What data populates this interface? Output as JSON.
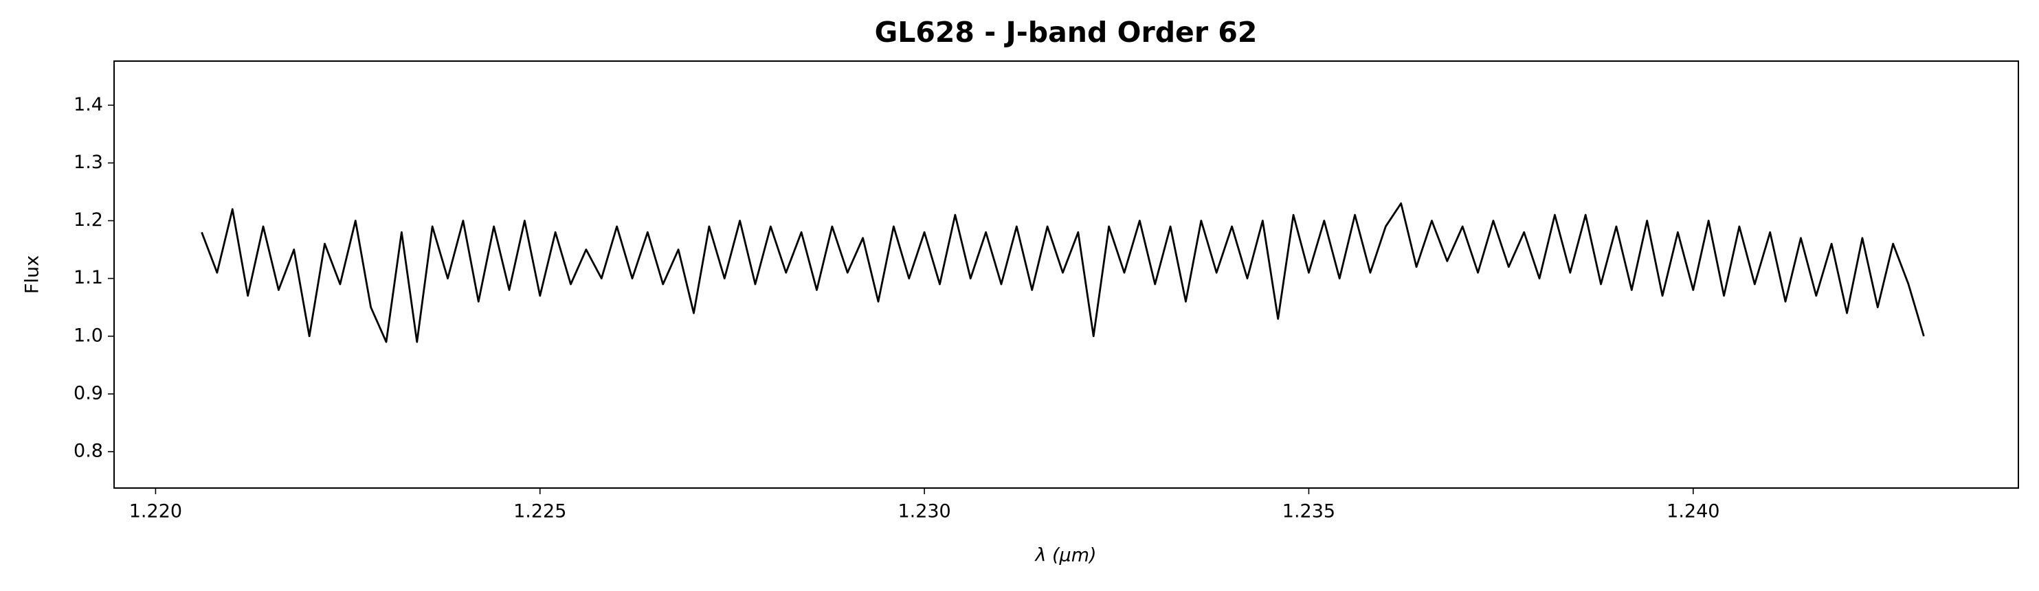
{
  "chart_data": {
    "type": "line",
    "title": "GL628 - J-band Order 62",
    "x_label": "λ (μm)",
    "y_label": "Flux",
    "color": "#000000",
    "x": [
      1.2206,
      1.2208,
      1.221,
      1.2212,
      1.2214,
      1.2216,
      1.2218,
      1.222,
      1.2222,
      1.2224,
      1.2226,
      1.2228,
      1.223,
      1.2232,
      1.2234,
      1.2236,
      1.2238,
      1.224,
      1.2242,
      1.2244,
      1.2246,
      1.2248,
      1.225,
      1.2252,
      1.2254,
      1.2256,
      1.2258,
      1.226,
      1.2262,
      1.2264,
      1.2266,
      1.2268,
      1.227,
      1.2272,
      1.2274,
      1.2276,
      1.2278,
      1.228,
      1.2282,
      1.2284,
      1.2286,
      1.2288,
      1.229,
      1.2292,
      1.2294,
      1.2296,
      1.2298,
      1.23,
      1.2302,
      1.2304,
      1.2306,
      1.2308,
      1.231,
      1.2312,
      1.2314,
      1.2316,
      1.2318,
      1.232,
      1.2322,
      1.2324,
      1.2326,
      1.2328,
      1.233,
      1.2332,
      1.2334,
      1.2336,
      1.2338,
      1.234,
      1.2342,
      1.2344,
      1.2346,
      1.2348,
      1.235,
      1.2352,
      1.2354,
      1.2356,
      1.2358,
      1.236,
      1.2362,
      1.2364,
      1.2366,
      1.2368,
      1.237,
      1.2372,
      1.2374,
      1.2376,
      1.2378,
      1.238,
      1.2382,
      1.2384,
      1.2386,
      1.2388,
      1.239,
      1.2392,
      1.2394,
      1.2396,
      1.2398,
      1.24,
      1.2402,
      1.2404,
      1.2406,
      1.2408,
      1.241,
      1.2412,
      1.2414,
      1.2416,
      1.2418,
      1.242,
      1.2422,
      1.2424,
      1.2426,
      1.2428,
      1.243
    ],
    "values": [
      1.18,
      1.11,
      1.22,
      1.07,
      1.19,
      1.08,
      1.15,
      1.0,
      1.16,
      1.09,
      1.2,
      1.05,
      0.99,
      1.18,
      0.99,
      1.19,
      1.1,
      1.2,
      1.06,
      1.19,
      1.08,
      1.2,
      1.07,
      1.18,
      1.09,
      1.15,
      1.1,
      1.19,
      1.1,
      1.18,
      1.09,
      1.15,
      1.04,
      1.19,
      1.1,
      1.2,
      1.09,
      1.19,
      1.11,
      1.18,
      1.08,
      1.19,
      1.11,
      1.17,
      1.06,
      1.19,
      1.1,
      1.18,
      1.09,
      1.21,
      1.1,
      1.18,
      1.09,
      1.19,
      1.08,
      1.19,
      1.11,
      1.18,
      1.0,
      1.19,
      1.11,
      1.2,
      1.09,
      1.19,
      1.06,
      1.2,
      1.11,
      1.19,
      1.1,
      1.2,
      1.03,
      1.21,
      1.11,
      1.2,
      1.1,
      1.21,
      1.11,
      1.19,
      1.23,
      1.12,
      1.2,
      1.13,
      1.19,
      1.11,
      1.2,
      1.12,
      1.18,
      1.1,
      1.21,
      1.11,
      1.21,
      1.09,
      1.19,
      1.08,
      1.2,
      1.07,
      1.18,
      1.08,
      1.2,
      1.07,
      1.19,
      1.09,
      1.18,
      1.06,
      1.17,
      1.07,
      1.16,
      1.04,
      1.17,
      1.05,
      1.16,
      1.09,
      1.0
    ],
    "xlim": [
      1.21946,
      1.24423
    ],
    "ylim": [
      0.737,
      1.4764
    ],
    "xticks": [
      {
        "value": 1.22,
        "label": "1.220"
      },
      {
        "value": 1.225,
        "label": "1.225"
      },
      {
        "value": 1.23,
        "label": "1.230"
      },
      {
        "value": 1.235,
        "label": "1.235"
      },
      {
        "value": 1.24,
        "label": "1.240"
      }
    ],
    "yticks": [
      0.8,
      0.9,
      {
        "value": 1,
        "label": "1.0"
      },
      1.1,
      1.2,
      1.3,
      1.4
    ]
  }
}
